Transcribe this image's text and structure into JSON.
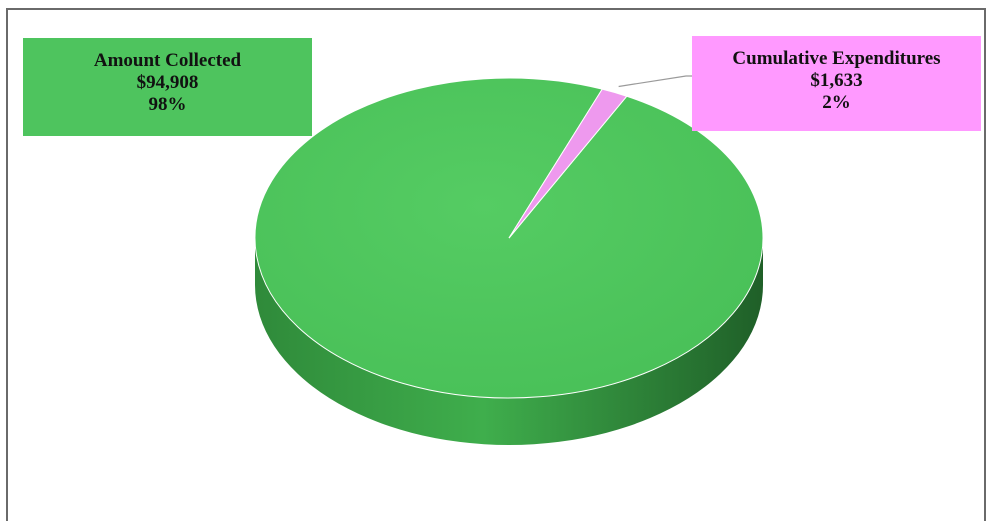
{
  "chart_data": {
    "type": "pie",
    "slices": [
      {
        "label": "Amount Collected",
        "value": 94908,
        "value_text": "$94,908",
        "percent_text": "98%",
        "color": "#4ec45e",
        "side_color": "#2f8f3c"
      },
      {
        "label": "Cumulative Expenditures",
        "value": 1633,
        "value_text": "$1,633",
        "percent_text": "2%",
        "color": "#ee99ee",
        "side_color": "#b86cb8"
      }
    ],
    "three_d": true,
    "legend": "none",
    "data_labels": "callouts"
  }
}
